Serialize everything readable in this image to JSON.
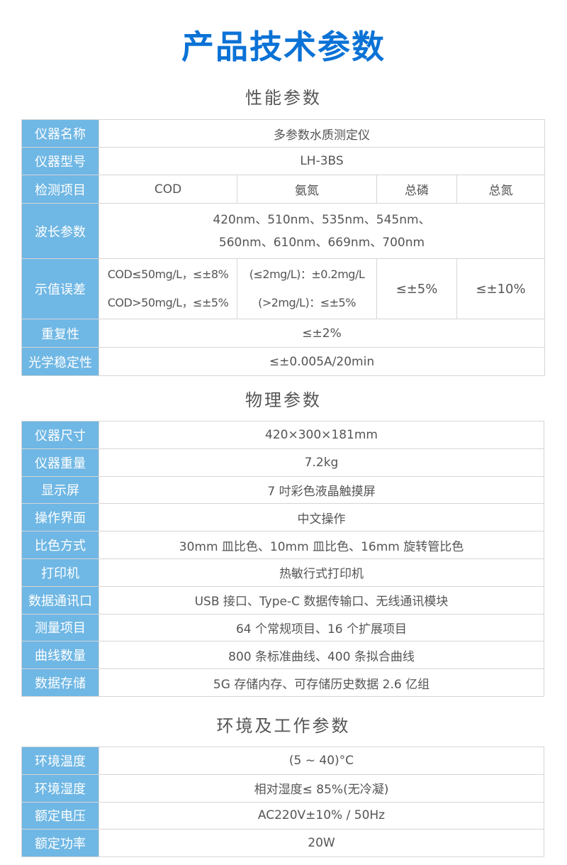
{
  "title": "产品技术参数",
  "performance": {
    "heading": "性能参数",
    "name": {
      "label": "仪器名称",
      "value": "多参数水质测定仪"
    },
    "model": {
      "label": "仪器型号",
      "value": "LH-3BS"
    },
    "items": {
      "label": "检测项目",
      "values": [
        "COD",
        "氨氮",
        "总磷",
        "总氮"
      ]
    },
    "wavelength": {
      "label": "波长参数",
      "line1": "420nm、510nm、535nm、545nm、",
      "line2": "560nm、610nm、669nm、700nm"
    },
    "accuracy": {
      "label": "示值误差",
      "cod1": "COD≤50mg/L，≤±8%",
      "cod2": "COD>50mg/L，≤±5%",
      "nh1": "(≤2mg/L)：±0.2mg/L",
      "nh2": "(>2mg/L)：≤±5%",
      "tp": "≤±5%",
      "tn": "≤±10%"
    },
    "repeat": {
      "label": "重复性",
      "value": "≤±2%"
    },
    "stability": {
      "label": "光学稳定性",
      "value": "≤±0.005A/20min"
    }
  },
  "physical": {
    "heading": "物理参数",
    "rows": [
      {
        "label": "仪器尺寸",
        "value": "420×300×181mm"
      },
      {
        "label": "仪器重量",
        "value": "7.2kg"
      },
      {
        "label": "显示屏",
        "value": "7 吋彩色液晶触摸屏"
      },
      {
        "label": "操作界面",
        "value": "中文操作"
      },
      {
        "label": "比色方式",
        "value": "30mm 皿比色、10mm 皿比色、16mm 旋转管比色"
      },
      {
        "label": "打印机",
        "value": "热敏行式打印机"
      },
      {
        "label": "数据通讯口",
        "value": "USB 接口、Type-C 数据传输口、无线通讯模块"
      },
      {
        "label": "测量项目",
        "value": "64 个常规项目、16 个扩展项目"
      },
      {
        "label": "曲线数量",
        "value": "800 条标准曲线、400 条拟合曲线"
      },
      {
        "label": "数据存储",
        "value": "5G 存储内存、可存储历史数据 2.6 亿组"
      }
    ]
  },
  "environment": {
    "heading": "环境及工作参数",
    "rows": [
      {
        "label": "环境温度",
        "value": "(5 ~ 40)°C"
      },
      {
        "label": "环境湿度",
        "value": "相对湿度≤ 85%(无冷凝)"
      },
      {
        "label": "额定电压",
        "value": "AC220V±10% / 50Hz"
      },
      {
        "label": "额定功率",
        "value": "20W"
      }
    ]
  }
}
